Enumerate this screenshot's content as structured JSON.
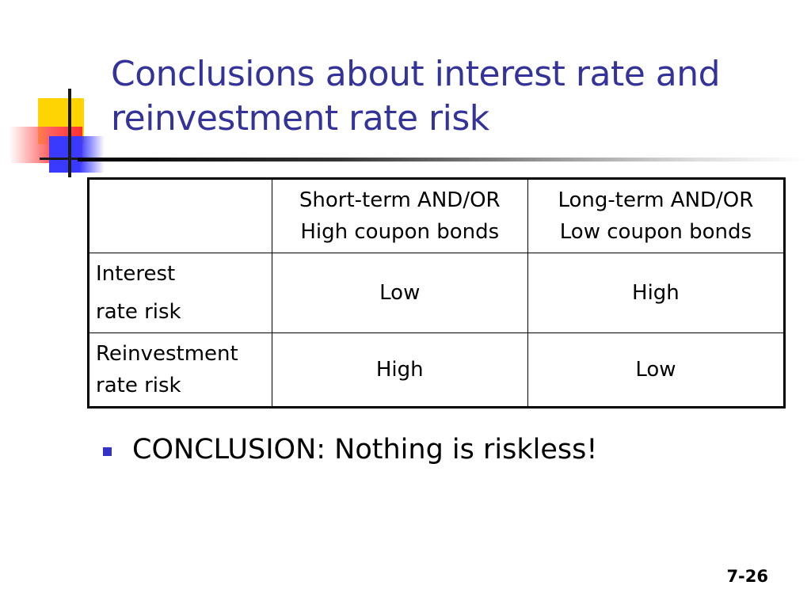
{
  "slide": {
    "title_line1": "Conclusions about interest rate and",
    "title_line2": "reinvestment rate risk",
    "table": {
      "header": [
        "",
        "Short-term AND/OR",
        "Long-term AND/OR"
      ],
      "header_line2": [
        "",
        "High coupon bonds",
        "Low coupon bonds"
      ],
      "rows": [
        {
          "label_line1": "Interest",
          "label_line2": "rate risk",
          "col1": "Low",
          "col2": "High"
        },
        {
          "label_line1": "Reinvestment",
          "label_line2": "rate risk",
          "col1": "High",
          "col2": "Low"
        }
      ]
    },
    "bullet": "CONCLUSION: Nothing is riskless!",
    "page_number": "7-26",
    "colors": {
      "title": "#333399",
      "bullet": "#3333cc"
    }
  }
}
